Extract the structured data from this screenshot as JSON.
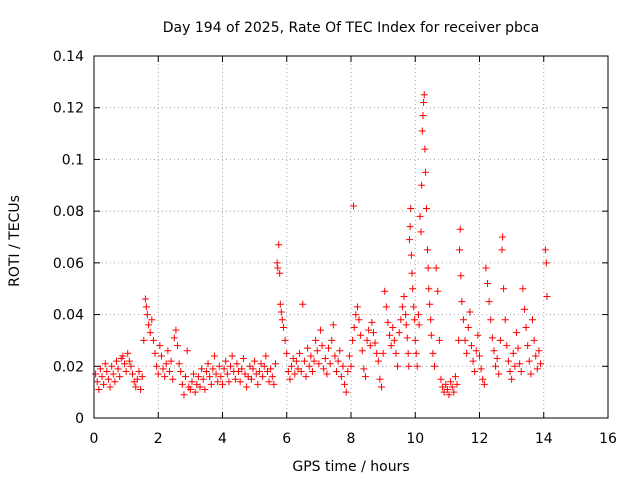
{
  "chart_data": {
    "type": "scatter",
    "title": "Day 194 of 2025, Rate Of TEC Index for receiver pbca",
    "xlabel": "GPS time / hours",
    "ylabel": "ROTI / TECUs",
    "xlim": [
      0,
      16
    ],
    "ylim": [
      0,
      0.14
    ],
    "x_ticks": [
      0,
      2,
      4,
      6,
      8,
      10,
      12,
      14,
      16
    ],
    "y_ticks": [
      0,
      0.02,
      0.04,
      0.06,
      0.08,
      0.1,
      0.12,
      0.14
    ],
    "x_tick_labels": [
      "0",
      "2",
      "4",
      "6",
      "8",
      "10",
      "12",
      "14",
      "16"
    ],
    "y_tick_labels": [
      "0",
      "0.02",
      "0.04",
      "0.06",
      "0.08",
      "0.1",
      "0.12",
      "0.14"
    ],
    "grid": true,
    "marker": "plus",
    "marker_color": "#ff0000",
    "series": [
      {
        "name": "pbca",
        "points": [
          [
            0.05,
            0.017
          ],
          [
            0.1,
            0.014
          ],
          [
            0.15,
            0.011
          ],
          [
            0.2,
            0.019
          ],
          [
            0.25,
            0.016
          ],
          [
            0.3,
            0.013
          ],
          [
            0.35,
            0.021
          ],
          [
            0.4,
            0.018
          ],
          [
            0.45,
            0.015
          ],
          [
            0.5,
            0.012
          ],
          [
            0.55,
            0.02
          ],
          [
            0.6,
            0.017
          ],
          [
            0.65,
            0.014
          ],
          [
            0.7,
            0.022
          ],
          [
            0.75,
            0.019
          ],
          [
            0.8,
            0.016
          ],
          [
            0.85,
            0.023
          ],
          [
            0.9,
            0.024
          ],
          [
            0.95,
            0.021
          ],
          [
            1.0,
            0.018
          ],
          [
            1.05,
            0.025
          ],
          [
            1.1,
            0.022
          ],
          [
            1.15,
            0.02
          ],
          [
            1.2,
            0.017
          ],
          [
            1.25,
            0.014
          ],
          [
            1.3,
            0.012
          ],
          [
            1.35,
            0.015
          ],
          [
            1.4,
            0.018
          ],
          [
            1.45,
            0.011
          ],
          [
            1.5,
            0.016
          ],
          [
            1.55,
            0.03
          ],
          [
            1.6,
            0.046
          ],
          [
            1.63,
            0.043
          ],
          [
            1.66,
            0.04
          ],
          [
            1.7,
            0.036
          ],
          [
            1.75,
            0.033
          ],
          [
            1.8,
            0.038
          ],
          [
            1.85,
            0.03
          ],
          [
            1.9,
            0.025
          ],
          [
            1.95,
            0.02
          ],
          [
            2.0,
            0.017
          ],
          [
            2.05,
            0.028
          ],
          [
            2.1,
            0.024
          ],
          [
            2.15,
            0.019
          ],
          [
            2.2,
            0.016
          ],
          [
            2.25,
            0.021
          ],
          [
            2.3,
            0.026
          ],
          [
            2.35,
            0.018
          ],
          [
            2.4,
            0.022
          ],
          [
            2.45,
            0.015
          ],
          [
            2.5,
            0.031
          ],
          [
            2.55,
            0.034
          ],
          [
            2.6,
            0.028
          ],
          [
            2.65,
            0.021
          ],
          [
            2.7,
            0.018
          ],
          [
            2.75,
            0.013
          ],
          [
            2.8,
            0.009
          ],
          [
            2.85,
            0.016
          ],
          [
            2.9,
            0.026
          ],
          [
            2.95,
            0.012
          ],
          [
            3.0,
            0.011
          ],
          [
            3.05,
            0.014
          ],
          [
            3.1,
            0.017
          ],
          [
            3.15,
            0.01
          ],
          [
            3.2,
            0.013
          ],
          [
            3.25,
            0.016
          ],
          [
            3.3,
            0.012
          ],
          [
            3.35,
            0.019
          ],
          [
            3.4,
            0.015
          ],
          [
            3.45,
            0.011
          ],
          [
            3.5,
            0.018
          ],
          [
            3.55,
            0.021
          ],
          [
            3.6,
            0.016
          ],
          [
            3.65,
            0.013
          ],
          [
            3.7,
            0.019
          ],
          [
            3.75,
            0.024
          ],
          [
            3.8,
            0.017
          ],
          [
            3.85,
            0.014
          ],
          [
            3.9,
            0.02
          ],
          [
            3.95,
            0.016
          ],
          [
            4.0,
            0.013
          ],
          [
            4.05,
            0.019
          ],
          [
            4.1,
            0.022
          ],
          [
            4.15,
            0.017
          ],
          [
            4.2,
            0.014
          ],
          [
            4.25,
            0.02
          ],
          [
            4.3,
            0.024
          ],
          [
            4.35,
            0.018
          ],
          [
            4.4,
            0.015
          ],
          [
            4.45,
            0.021
          ],
          [
            4.5,
            0.018
          ],
          [
            4.55,
            0.014
          ],
          [
            4.6,
            0.019
          ],
          [
            4.65,
            0.023
          ],
          [
            4.7,
            0.017
          ],
          [
            4.75,
            0.012
          ],
          [
            4.8,
            0.016
          ],
          [
            4.85,
            0.02
          ],
          [
            4.9,
            0.015
          ],
          [
            4.95,
            0.019
          ],
          [
            5.0,
            0.022
          ],
          [
            5.05,
            0.017
          ],
          [
            5.1,
            0.013
          ],
          [
            5.15,
            0.018
          ],
          [
            5.2,
            0.021
          ],
          [
            5.25,
            0.016
          ],
          [
            5.3,
            0.02
          ],
          [
            5.35,
            0.024
          ],
          [
            5.4,
            0.018
          ],
          [
            5.45,
            0.014
          ],
          [
            5.5,
            0.019
          ],
          [
            5.55,
            0.016
          ],
          [
            5.6,
            0.013
          ],
          [
            5.65,
            0.021
          ],
          [
            5.7,
            0.06
          ],
          [
            5.72,
            0.058
          ],
          [
            5.75,
            0.067
          ],
          [
            5.78,
            0.056
          ],
          [
            5.8,
            0.044
          ],
          [
            5.83,
            0.041
          ],
          [
            5.86,
            0.038
          ],
          [
            5.9,
            0.035
          ],
          [
            5.95,
            0.03
          ],
          [
            6.0,
            0.025
          ],
          [
            6.05,
            0.018
          ],
          [
            6.1,
            0.015
          ],
          [
            6.15,
            0.02
          ],
          [
            6.2,
            0.023
          ],
          [
            6.25,
            0.017
          ],
          [
            6.3,
            0.022
          ],
          [
            6.35,
            0.019
          ],
          [
            6.4,
            0.025
          ],
          [
            6.45,
            0.018
          ],
          [
            6.5,
            0.044
          ],
          [
            6.55,
            0.022
          ],
          [
            6.6,
            0.016
          ],
          [
            6.65,
            0.027
          ],
          [
            6.7,
            0.02
          ],
          [
            6.75,
            0.024
          ],
          [
            6.8,
            0.018
          ],
          [
            6.85,
            0.022
          ],
          [
            6.9,
            0.03
          ],
          [
            6.95,
            0.026
          ],
          [
            7.0,
            0.021
          ],
          [
            7.05,
            0.034
          ],
          [
            7.1,
            0.028
          ],
          [
            7.15,
            0.019
          ],
          [
            7.2,
            0.023
          ],
          [
            7.25,
            0.017
          ],
          [
            7.3,
            0.027
          ],
          [
            7.35,
            0.021
          ],
          [
            7.4,
            0.03
          ],
          [
            7.45,
            0.036
          ],
          [
            7.5,
            0.024
          ],
          [
            7.55,
            0.018
          ],
          [
            7.6,
            0.022
          ],
          [
            7.65,
            0.026
          ],
          [
            7.7,
            0.016
          ],
          [
            7.75,
            0.02
          ],
          [
            7.8,
            0.013
          ],
          [
            7.85,
            0.01
          ],
          [
            7.9,
            0.018
          ],
          [
            7.95,
            0.024
          ],
          [
            8.0,
            0.02
          ],
          [
            8.05,
            0.03
          ],
          [
            8.08,
            0.082
          ],
          [
            8.1,
            0.035
          ],
          [
            8.15,
            0.04
          ],
          [
            8.2,
            0.043
          ],
          [
            8.25,
            0.038
          ],
          [
            8.3,
            0.032
          ],
          [
            8.35,
            0.026
          ],
          [
            8.4,
            0.019
          ],
          [
            8.45,
            0.016
          ],
          [
            8.5,
            0.03
          ],
          [
            8.55,
            0.034
          ],
          [
            8.6,
            0.028
          ],
          [
            8.65,
            0.037
          ],
          [
            8.7,
            0.033
          ],
          [
            8.75,
            0.029
          ],
          [
            8.8,
            0.025
          ],
          [
            8.85,
            0.022
          ],
          [
            8.9,
            0.015
          ],
          [
            8.95,
            0.012
          ],
          [
            9.0,
            0.025
          ],
          [
            9.05,
            0.049
          ],
          [
            9.1,
            0.043
          ],
          [
            9.15,
            0.037
          ],
          [
            9.2,
            0.032
          ],
          [
            9.25,
            0.028
          ],
          [
            9.3,
            0.035
          ],
          [
            9.35,
            0.03
          ],
          [
            9.4,
            0.025
          ],
          [
            9.45,
            0.02
          ],
          [
            9.5,
            0.033
          ],
          [
            9.55,
            0.038
          ],
          [
            9.6,
            0.043
          ],
          [
            9.65,
            0.047
          ],
          [
            9.7,
            0.04
          ],
          [
            9.72,
            0.036
          ],
          [
            9.75,
            0.031
          ],
          [
            9.78,
            0.025
          ],
          [
            9.8,
            0.02
          ],
          [
            9.82,
            0.069
          ],
          [
            9.84,
            0.074
          ],
          [
            9.86,
            0.081
          ],
          [
            9.88,
            0.063
          ],
          [
            9.9,
            0.056
          ],
          [
            9.92,
            0.05
          ],
          [
            9.95,
            0.043
          ],
          [
            9.98,
            0.038
          ],
          [
            10.0,
            0.03
          ],
          [
            10.03,
            0.025
          ],
          [
            10.06,
            0.02
          ],
          [
            10.1,
            0.04
          ],
          [
            10.12,
            0.036
          ],
          [
            10.15,
            0.078
          ],
          [
            10.18,
            0.072
          ],
          [
            10.2,
            0.09
          ],
          [
            10.22,
            0.111
          ],
          [
            10.24,
            0.117
          ],
          [
            10.26,
            0.122
          ],
          [
            10.28,
            0.125
          ],
          [
            10.3,
            0.104
          ],
          [
            10.32,
            0.095
          ],
          [
            10.35,
            0.081
          ],
          [
            10.38,
            0.065
          ],
          [
            10.4,
            0.058
          ],
          [
            10.42,
            0.05
          ],
          [
            10.45,
            0.044
          ],
          [
            10.48,
            0.038
          ],
          [
            10.5,
            0.032
          ],
          [
            10.55,
            0.025
          ],
          [
            10.6,
            0.02
          ],
          [
            10.65,
            0.058
          ],
          [
            10.7,
            0.049
          ],
          [
            10.75,
            0.03
          ],
          [
            10.8,
            0.015
          ],
          [
            10.85,
            0.012
          ],
          [
            10.9,
            0.01
          ],
          [
            10.95,
            0.013
          ],
          [
            11.0,
            0.011
          ],
          [
            11.05,
            0.009
          ],
          [
            11.1,
            0.014
          ],
          [
            11.15,
            0.012
          ],
          [
            11.2,
            0.01
          ],
          [
            11.25,
            0.016
          ],
          [
            11.3,
            0.013
          ],
          [
            11.35,
            0.03
          ],
          [
            11.38,
            0.065
          ],
          [
            11.4,
            0.073
          ],
          [
            11.42,
            0.055
          ],
          [
            11.45,
            0.045
          ],
          [
            11.5,
            0.038
          ],
          [
            11.55,
            0.03
          ],
          [
            11.6,
            0.025
          ],
          [
            11.65,
            0.035
          ],
          [
            11.7,
            0.041
          ],
          [
            11.75,
            0.028
          ],
          [
            11.8,
            0.022
          ],
          [
            11.85,
            0.018
          ],
          [
            11.9,
            0.026
          ],
          [
            11.95,
            0.032
          ],
          [
            12.0,
            0.024
          ],
          [
            12.05,
            0.019
          ],
          [
            12.1,
            0.015
          ],
          [
            12.15,
            0.013
          ],
          [
            12.2,
            0.058
          ],
          [
            12.25,
            0.052
          ],
          [
            12.3,
            0.045
          ],
          [
            12.35,
            0.038
          ],
          [
            12.4,
            0.031
          ],
          [
            12.45,
            0.026
          ],
          [
            12.5,
            0.02
          ],
          [
            12.55,
            0.023
          ],
          [
            12.6,
            0.017
          ],
          [
            12.65,
            0.03
          ],
          [
            12.7,
            0.065
          ],
          [
            12.72,
            0.07
          ],
          [
            12.75,
            0.05
          ],
          [
            12.8,
            0.038
          ],
          [
            12.85,
            0.028
          ],
          [
            12.9,
            0.022
          ],
          [
            12.95,
            0.018
          ],
          [
            13.0,
            0.015
          ],
          [
            13.05,
            0.025
          ],
          [
            13.1,
            0.02
          ],
          [
            13.15,
            0.033
          ],
          [
            13.2,
            0.027
          ],
          [
            13.25,
            0.021
          ],
          [
            13.3,
            0.018
          ],
          [
            13.35,
            0.05
          ],
          [
            13.4,
            0.042
          ],
          [
            13.45,
            0.035
          ],
          [
            13.5,
            0.028
          ],
          [
            13.55,
            0.022
          ],
          [
            13.6,
            0.017
          ],
          [
            13.65,
            0.038
          ],
          [
            13.7,
            0.03
          ],
          [
            13.75,
            0.024
          ],
          [
            13.8,
            0.019
          ],
          [
            13.85,
            0.026
          ],
          [
            13.9,
            0.021
          ],
          [
            14.05,
            0.065
          ],
          [
            14.08,
            0.06
          ],
          [
            14.1,
            0.047
          ]
        ]
      }
    ]
  }
}
